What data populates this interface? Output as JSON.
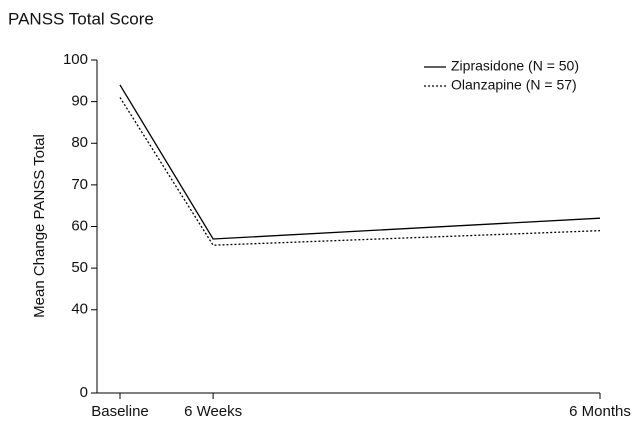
{
  "chart_data": {
    "type": "line",
    "title": "PANSS Total Score",
    "ylabel": "Mean Change PANSS Total",
    "categories": [
      "Baseline",
      "6 Weeks",
      "6 Months"
    ],
    "series": [
      {
        "name": "Ziprasidone (N = 50)",
        "color": "#000000",
        "dash": "solid",
        "values": [
          94,
          57,
          62
        ]
      },
      {
        "name": "Olanzapine (N = 57)",
        "color": "#000000",
        "dash": "dotted",
        "values": [
          91,
          55.5,
          59
        ]
      }
    ],
    "ylim": [
      0,
      100
    ],
    "yticks": [
      0,
      40,
      50,
      60,
      70,
      80,
      90,
      100
    ],
    "axis_break": true,
    "legend": "upper right"
  }
}
